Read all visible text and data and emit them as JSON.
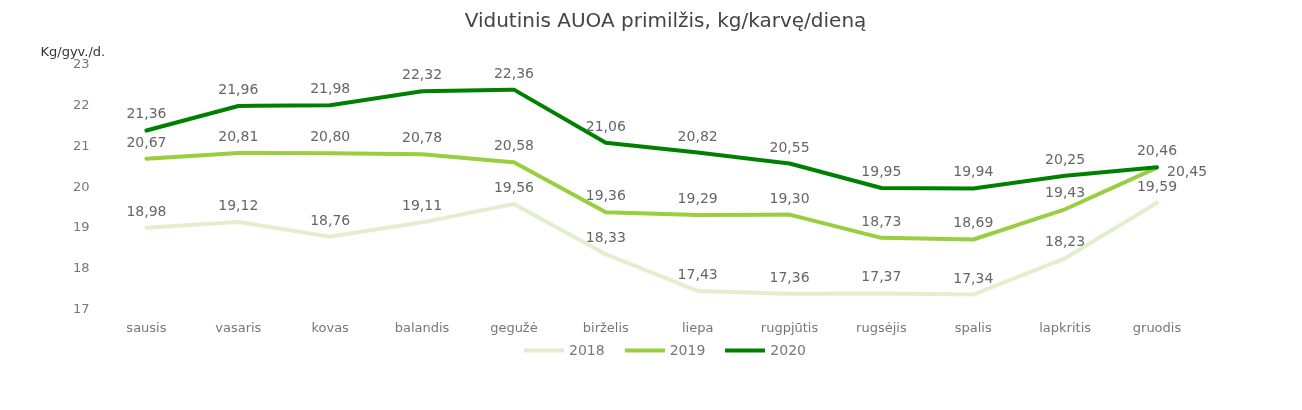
{
  "chart_data": {
    "type": "line",
    "title": "Vidutinis AUOA primilžis, kg/karvę/dieną",
    "ylabel": "Kg/gyv./d.",
    "categories": [
      "sausis",
      "vasaris",
      "kovas",
      "balandis",
      "gegužė",
      "birželis",
      "liepa",
      "rugpjūtis",
      "rugsėjis",
      "spalis",
      "lapkritis",
      "gruodis"
    ],
    "series": [
      {
        "name": "2018",
        "color": "#e2efcf",
        "values": [
          18.98,
          19.12,
          18.76,
          19.11,
          19.56,
          18.33,
          17.43,
          17.36,
          17.37,
          17.34,
          18.23,
          19.59
        ],
        "value_labels": [
          "18,98",
          "19,12",
          "18,76",
          "19,11",
          "19,56",
          "18,33",
          "17,43",
          "17,36",
          "17,37",
          "17,34",
          "18,23",
          "19,59"
        ]
      },
      {
        "name": "2019",
        "color": "#9acd3f",
        "values": [
          20.67,
          20.81,
          20.8,
          20.78,
          20.58,
          19.36,
          19.29,
          19.3,
          18.73,
          18.69,
          19.43,
          20.45
        ],
        "value_labels": [
          "20,67",
          "20,81",
          "20,80",
          "20,78",
          "20,58",
          "19,36",
          "19,29",
          "19,30",
          "18,73",
          "18,69",
          "19,43",
          "20,45"
        ]
      },
      {
        "name": "2020",
        "color": "#008000",
        "values": [
          21.36,
          21.96,
          21.98,
          22.32,
          22.36,
          21.06,
          20.82,
          20.55,
          19.95,
          19.94,
          20.25,
          20.46
        ],
        "value_labels": [
          "21,36",
          "21,96",
          "21,98",
          "22,32",
          "22,36",
          "21,06",
          "20,82",
          "20,55",
          "19,95",
          "19,94",
          "20,25",
          "20,46"
        ]
      }
    ],
    "ylim": [
      17,
      23
    ],
    "yticks": [
      17,
      18,
      19,
      20,
      21,
      22,
      23
    ],
    "grid": false,
    "legend": "bottom",
    "marker": "none",
    "line_style": "solid"
  }
}
